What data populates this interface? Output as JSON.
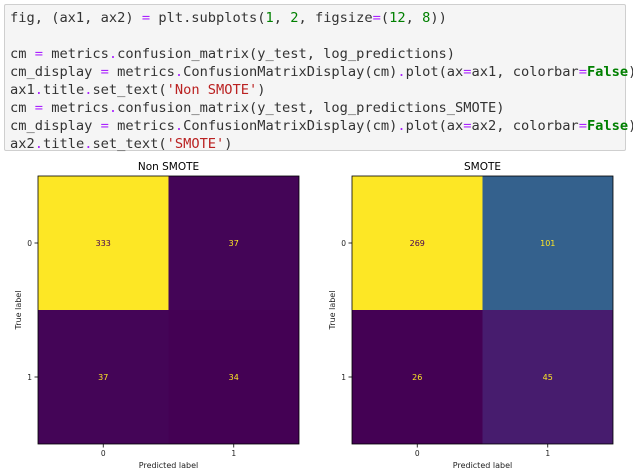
{
  "code_cell": {
    "lines": [
      [
        {
          "t": "fig, (ax1, ax2) ",
          "c": "plain"
        },
        {
          "t": "=",
          "c": "op"
        },
        {
          "t": " plt.subplots(",
          "c": "plain"
        },
        {
          "t": "1",
          "c": "num"
        },
        {
          "t": ", ",
          "c": "plain"
        },
        {
          "t": "2",
          "c": "num"
        },
        {
          "t": ", figsize",
          "c": "plain"
        },
        {
          "t": "=",
          "c": "op"
        },
        {
          "t": "(",
          "c": "plain"
        },
        {
          "t": "12",
          "c": "num"
        },
        {
          "t": ", ",
          "c": "plain"
        },
        {
          "t": "8",
          "c": "num"
        },
        {
          "t": "))",
          "c": "plain"
        }
      ],
      [],
      [
        {
          "t": "cm ",
          "c": "plain"
        },
        {
          "t": "=",
          "c": "op"
        },
        {
          "t": " metrics",
          "c": "plain"
        },
        {
          "t": ".",
          "c": "op"
        },
        {
          "t": "confusion_matrix(y_test, log_predictions)",
          "c": "plain"
        }
      ],
      [
        {
          "t": "cm_display ",
          "c": "plain"
        },
        {
          "t": "=",
          "c": "op"
        },
        {
          "t": " metrics",
          "c": "plain"
        },
        {
          "t": ".",
          "c": "op"
        },
        {
          "t": "ConfusionMatrixDisplay(cm)",
          "c": "plain"
        },
        {
          "t": ".",
          "c": "op"
        },
        {
          "t": "plot(ax",
          "c": "plain"
        },
        {
          "t": "=",
          "c": "op"
        },
        {
          "t": "ax1, colorbar",
          "c": "plain"
        },
        {
          "t": "=",
          "c": "op"
        },
        {
          "t": "False",
          "c": "kw"
        },
        {
          "t": ")",
          "c": "plain"
        }
      ],
      [
        {
          "t": "ax1",
          "c": "plain"
        },
        {
          "t": ".",
          "c": "op"
        },
        {
          "t": "title",
          "c": "plain"
        },
        {
          "t": ".",
          "c": "op"
        },
        {
          "t": "set_text(",
          "c": "plain"
        },
        {
          "t": "'Non SMOTE'",
          "c": "str"
        },
        {
          "t": ")",
          "c": "plain"
        }
      ],
      [
        {
          "t": "cm ",
          "c": "plain"
        },
        {
          "t": "=",
          "c": "op"
        },
        {
          "t": " metrics",
          "c": "plain"
        },
        {
          "t": ".",
          "c": "op"
        },
        {
          "t": "confusion_matrix(y_test, log_predictions_SMOTE)",
          "c": "plain"
        }
      ],
      [
        {
          "t": "cm_display ",
          "c": "plain"
        },
        {
          "t": "=",
          "c": "op"
        },
        {
          "t": " metrics",
          "c": "plain"
        },
        {
          "t": ".",
          "c": "op"
        },
        {
          "t": "ConfusionMatrixDisplay(cm)",
          "c": "plain"
        },
        {
          "t": ".",
          "c": "op"
        },
        {
          "t": "plot(ax",
          "c": "plain"
        },
        {
          "t": "=",
          "c": "op"
        },
        {
          "t": "ax2, colorbar",
          "c": "plain"
        },
        {
          "t": "=",
          "c": "op"
        },
        {
          "t": "False",
          "c": "kw"
        },
        {
          "t": ")",
          "c": "plain"
        }
      ],
      [
        {
          "t": "ax2",
          "c": "plain"
        },
        {
          "t": ".",
          "c": "op"
        },
        {
          "t": "title",
          "c": "plain"
        },
        {
          "t": ".",
          "c": "op"
        },
        {
          "t": "set_text(",
          "c": "plain"
        },
        {
          "t": "'SMOTE'",
          "c": "str"
        },
        {
          "t": ")",
          "c": "plain"
        }
      ]
    ]
  },
  "colors": {
    "op": "#AA22FF",
    "num": "#008000",
    "kw": "#008000",
    "str": "#BA2121",
    "plain": "#333333",
    "colormap": "viridis"
  },
  "chart_data": [
    {
      "type": "heatmap",
      "title": "Non SMOTE",
      "xlabel": "Predicted label",
      "ylabel": "True label",
      "x_ticks": [
        "0",
        "1"
      ],
      "y_ticks": [
        "0",
        "1"
      ],
      "matrix": [
        [
          333,
          37
        ],
        [
          37,
          34
        ]
      ],
      "colorbar": false
    },
    {
      "type": "heatmap",
      "title": "SMOTE",
      "xlabel": "Predicted label",
      "ylabel": "True label",
      "x_ticks": [
        "0",
        "1"
      ],
      "y_ticks": [
        "0",
        "1"
      ],
      "matrix": [
        [
          269,
          101
        ],
        [
          26,
          45
        ]
      ],
      "colorbar": false
    }
  ]
}
